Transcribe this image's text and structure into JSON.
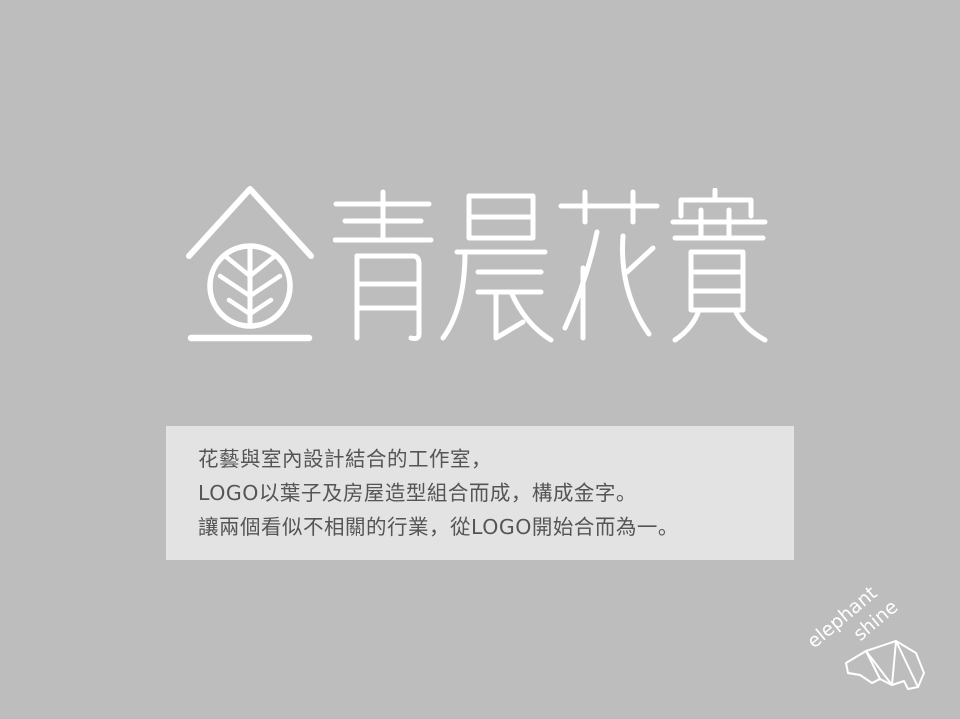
{
  "logo": {
    "brand_name": "金青晨花實",
    "mark": "gold-house-leaf-icon"
  },
  "description": {
    "lines": [
      "花藝與室內設計結合的工作室，",
      "LOGO以葉子及房屋造型組合而成，構成金字。",
      "讓兩個看似不相關的行業，從LOGO開始合而為一。"
    ]
  },
  "watermark": {
    "line1": "elephant",
    "line2": "shine",
    "mark": "elephant-origami-icon"
  },
  "colors": {
    "background": "#bdbdbd",
    "logo": "#ffffff",
    "desc_box": "#e3e3e3",
    "desc_text": "#555555"
  }
}
